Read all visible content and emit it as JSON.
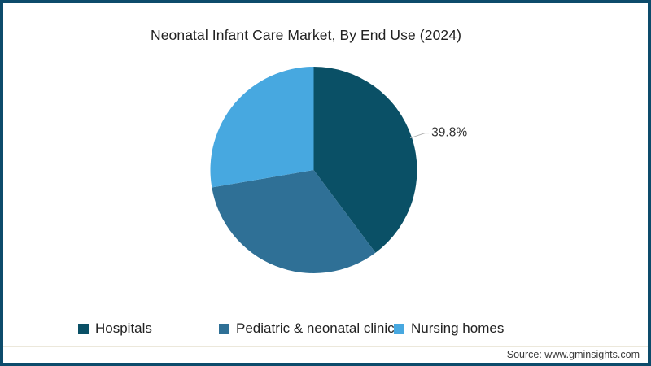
{
  "title": "Neonatal Infant Care Market, By End Use (2024)",
  "chart_data": {
    "type": "pie",
    "title": "Neonatal Infant Care Market, By End Use (2024)",
    "categories": [
      "Hospitals",
      "Pediatric & neonatal clinics",
      "Nursing homes"
    ],
    "values": [
      39.8,
      32.5,
      27.7
    ],
    "unit": "%",
    "colors": [
      "#0a5066",
      "#2f7096",
      "#47a8e0"
    ],
    "start_angle_deg": 0,
    "direction": "clockwise",
    "legend_position": "bottom",
    "data_labels": [
      {
        "slice": "Hospitals",
        "text": "39.8%"
      }
    ]
  },
  "annotation": {
    "share_label": "39.8%"
  },
  "legend": {
    "items": [
      {
        "label": "Hospitals",
        "color": "#0a5066"
      },
      {
        "label": "Pediatric & neonatal clinics",
        "color": "#2f7096"
      },
      {
        "label": "Nursing homes",
        "color": "#47a8e0"
      }
    ]
  },
  "source": {
    "text": "Source: www.gminsights.com"
  },
  "frame": {
    "border_color": "#0d4b6b",
    "background": "#ffffff"
  }
}
